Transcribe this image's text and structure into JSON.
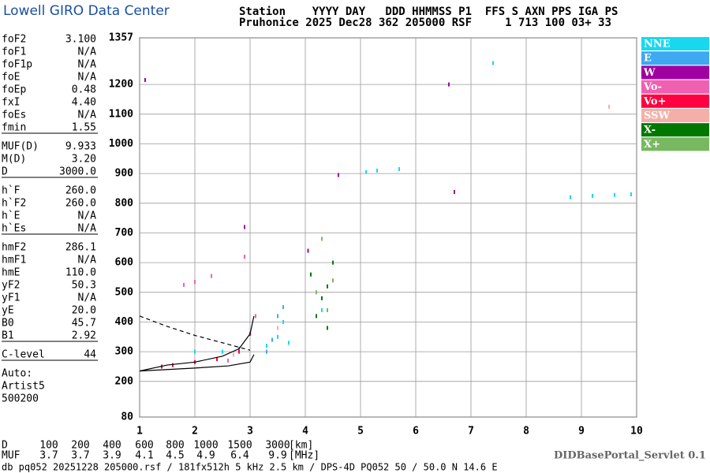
{
  "header": {
    "logo": "Lowell GIRO Data Center",
    "line1": "Station    YYYY DAY   DDD HHMMSS P1  FFS S AXN PPS IGA PS",
    "line2": "Pruhonice 2025 Dec28 362 205000 RSF     1 713 100 03+ 33"
  },
  "params": [
    [
      [
        "foF2",
        "3.100"
      ],
      [
        "foF1",
        "N/A"
      ],
      [
        "foF1p",
        "N/A"
      ],
      [
        "foE",
        "N/A"
      ],
      [
        "foEp",
        "0.48"
      ],
      [
        "fxI",
        "4.40"
      ],
      [
        "foEs",
        "N/A"
      ],
      [
        "fmin",
        "1.55"
      ]
    ],
    [
      [
        "MUF(D)",
        "9.933"
      ],
      [
        "M(D)",
        "3.20"
      ],
      [
        "D",
        "3000.0"
      ]
    ],
    [
      [
        "h`F",
        "260.0"
      ],
      [
        "h`F2",
        "260.0"
      ],
      [
        "h`E",
        "N/A"
      ],
      [
        "h`Es",
        "N/A"
      ]
    ],
    [
      [
        "hmF2",
        "286.1"
      ],
      [
        "hmF1",
        "N/A"
      ],
      [
        "hmE",
        "110.0"
      ],
      [
        "yF2",
        "50.3"
      ],
      [
        "yF1",
        "N/A"
      ],
      [
        "yE",
        "20.0"
      ],
      [
        "B0",
        "45.7"
      ],
      [
        "B1",
        "2.92"
      ]
    ],
    [
      [
        "C-level",
        "44"
      ]
    ],
    [
      [
        "Auto:"
      ],
      [
        "Artist5"
      ],
      [
        "500200"
      ]
    ]
  ],
  "bottom": {
    "d_label": "D",
    "d_values": [
      "100",
      "200",
      "400",
      "600",
      "800",
      "1000",
      "1500",
      "3000"
    ],
    "d_unit": "[km]",
    "muf_label": "MUF",
    "muf_values": [
      "3.7",
      "3.7",
      "3.9",
      "4.1",
      "4.5",
      "4.9",
      "6.4",
      "9.9"
    ],
    "muf_unit": "[MHz]",
    "servlet": "DIDBasePortal_Servlet 0.1",
    "file": "db pq052 20251228 205000.rsf / 181fx512h 5 kHz 2.5 km / DPS-4D PQ052 50 / 50.0 N 14.6 E"
  },
  "chart_data": {
    "type": "scatter",
    "grid": true,
    "xlim": [
      1,
      10
    ],
    "xticks": [
      1,
      2,
      3,
      4,
      5,
      6,
      7,
      8,
      9,
      10
    ],
    "ylim": [
      80,
      1357
    ],
    "yticks": [
      80,
      200,
      300,
      400,
      500,
      600,
      700,
      800,
      900,
      1000,
      1100,
      1200,
      1357
    ],
    "series": [
      {
        "name": "NNE",
        "color": "#18d8f0",
        "x": [
          3.3,
          3.5,
          3.6,
          3.7,
          4.3,
          5.1,
          5.3,
          5.7,
          7.4,
          8.8,
          9.2,
          9.6,
          9.9,
          2.0,
          2.5
        ],
        "values": [
          320,
          350,
          400,
          330,
          440,
          905,
          910,
          915,
          1272,
          820,
          825,
          828,
          830,
          300,
          300
        ]
      },
      {
        "name": "E",
        "color": "#3ea8f0",
        "x": [
          3.4,
          3.5,
          3.6,
          3.3,
          2.8
        ],
        "values": [
          340,
          420,
          450,
          300,
          310
        ]
      },
      {
        "name": "W",
        "color": "#a000a0",
        "x": [
          1.1,
          4.6,
          6.7,
          6.6,
          2.9,
          4.05
        ],
        "values": [
          1215,
          895,
          838,
          1200,
          720,
          640
        ]
      },
      {
        "name": "Vo-",
        "color": "#f060b0",
        "x": [
          1.8,
          2.0,
          2.3,
          3.1,
          2.9,
          2.6
        ],
        "values": [
          525,
          535,
          555,
          420,
          620,
          270
        ]
      },
      {
        "name": "Vo+",
        "color": "#ff0040",
        "x": [
          1.6,
          2.0,
          2.4,
          2.8,
          3.0,
          1.4
        ],
        "values": [
          255,
          265,
          275,
          300,
          360,
          250
        ]
      },
      {
        "name": "SSW",
        "color": "#f4b0a8",
        "x": [
          2.7,
          3.5,
          9.5
        ],
        "values": [
          290,
          380,
          1125
        ]
      },
      {
        "name": "X-",
        "color": "#007800",
        "x": [
          4.2,
          4.3,
          4.4,
          4.5,
          4.4,
          4.1
        ],
        "values": [
          420,
          480,
          520,
          600,
          380,
          560
        ]
      },
      {
        "name": "X+",
        "color": "#78b860",
        "x": [
          4.2,
          4.4,
          4.5,
          4.3
        ],
        "values": [
          500,
          440,
          540,
          680
        ]
      }
    ],
    "curves": [
      {
        "dash": true,
        "x": [
          1.0,
          1.5,
          2.0,
          2.5,
          3.0
        ],
        "values": [
          420,
          385,
          355,
          330,
          305
        ]
      },
      {
        "dash": false,
        "x": [
          1.0,
          1.5,
          2.0,
          2.5,
          2.8,
          3.0,
          3.07
        ],
        "values": [
          235,
          255,
          265,
          285,
          310,
          360,
          420
        ]
      },
      {
        "dash": false,
        "x": [
          1.0,
          2.0,
          2.6,
          3.0,
          3.07
        ],
        "values": [
          235,
          245,
          252,
          265,
          290
        ]
      }
    ]
  }
}
